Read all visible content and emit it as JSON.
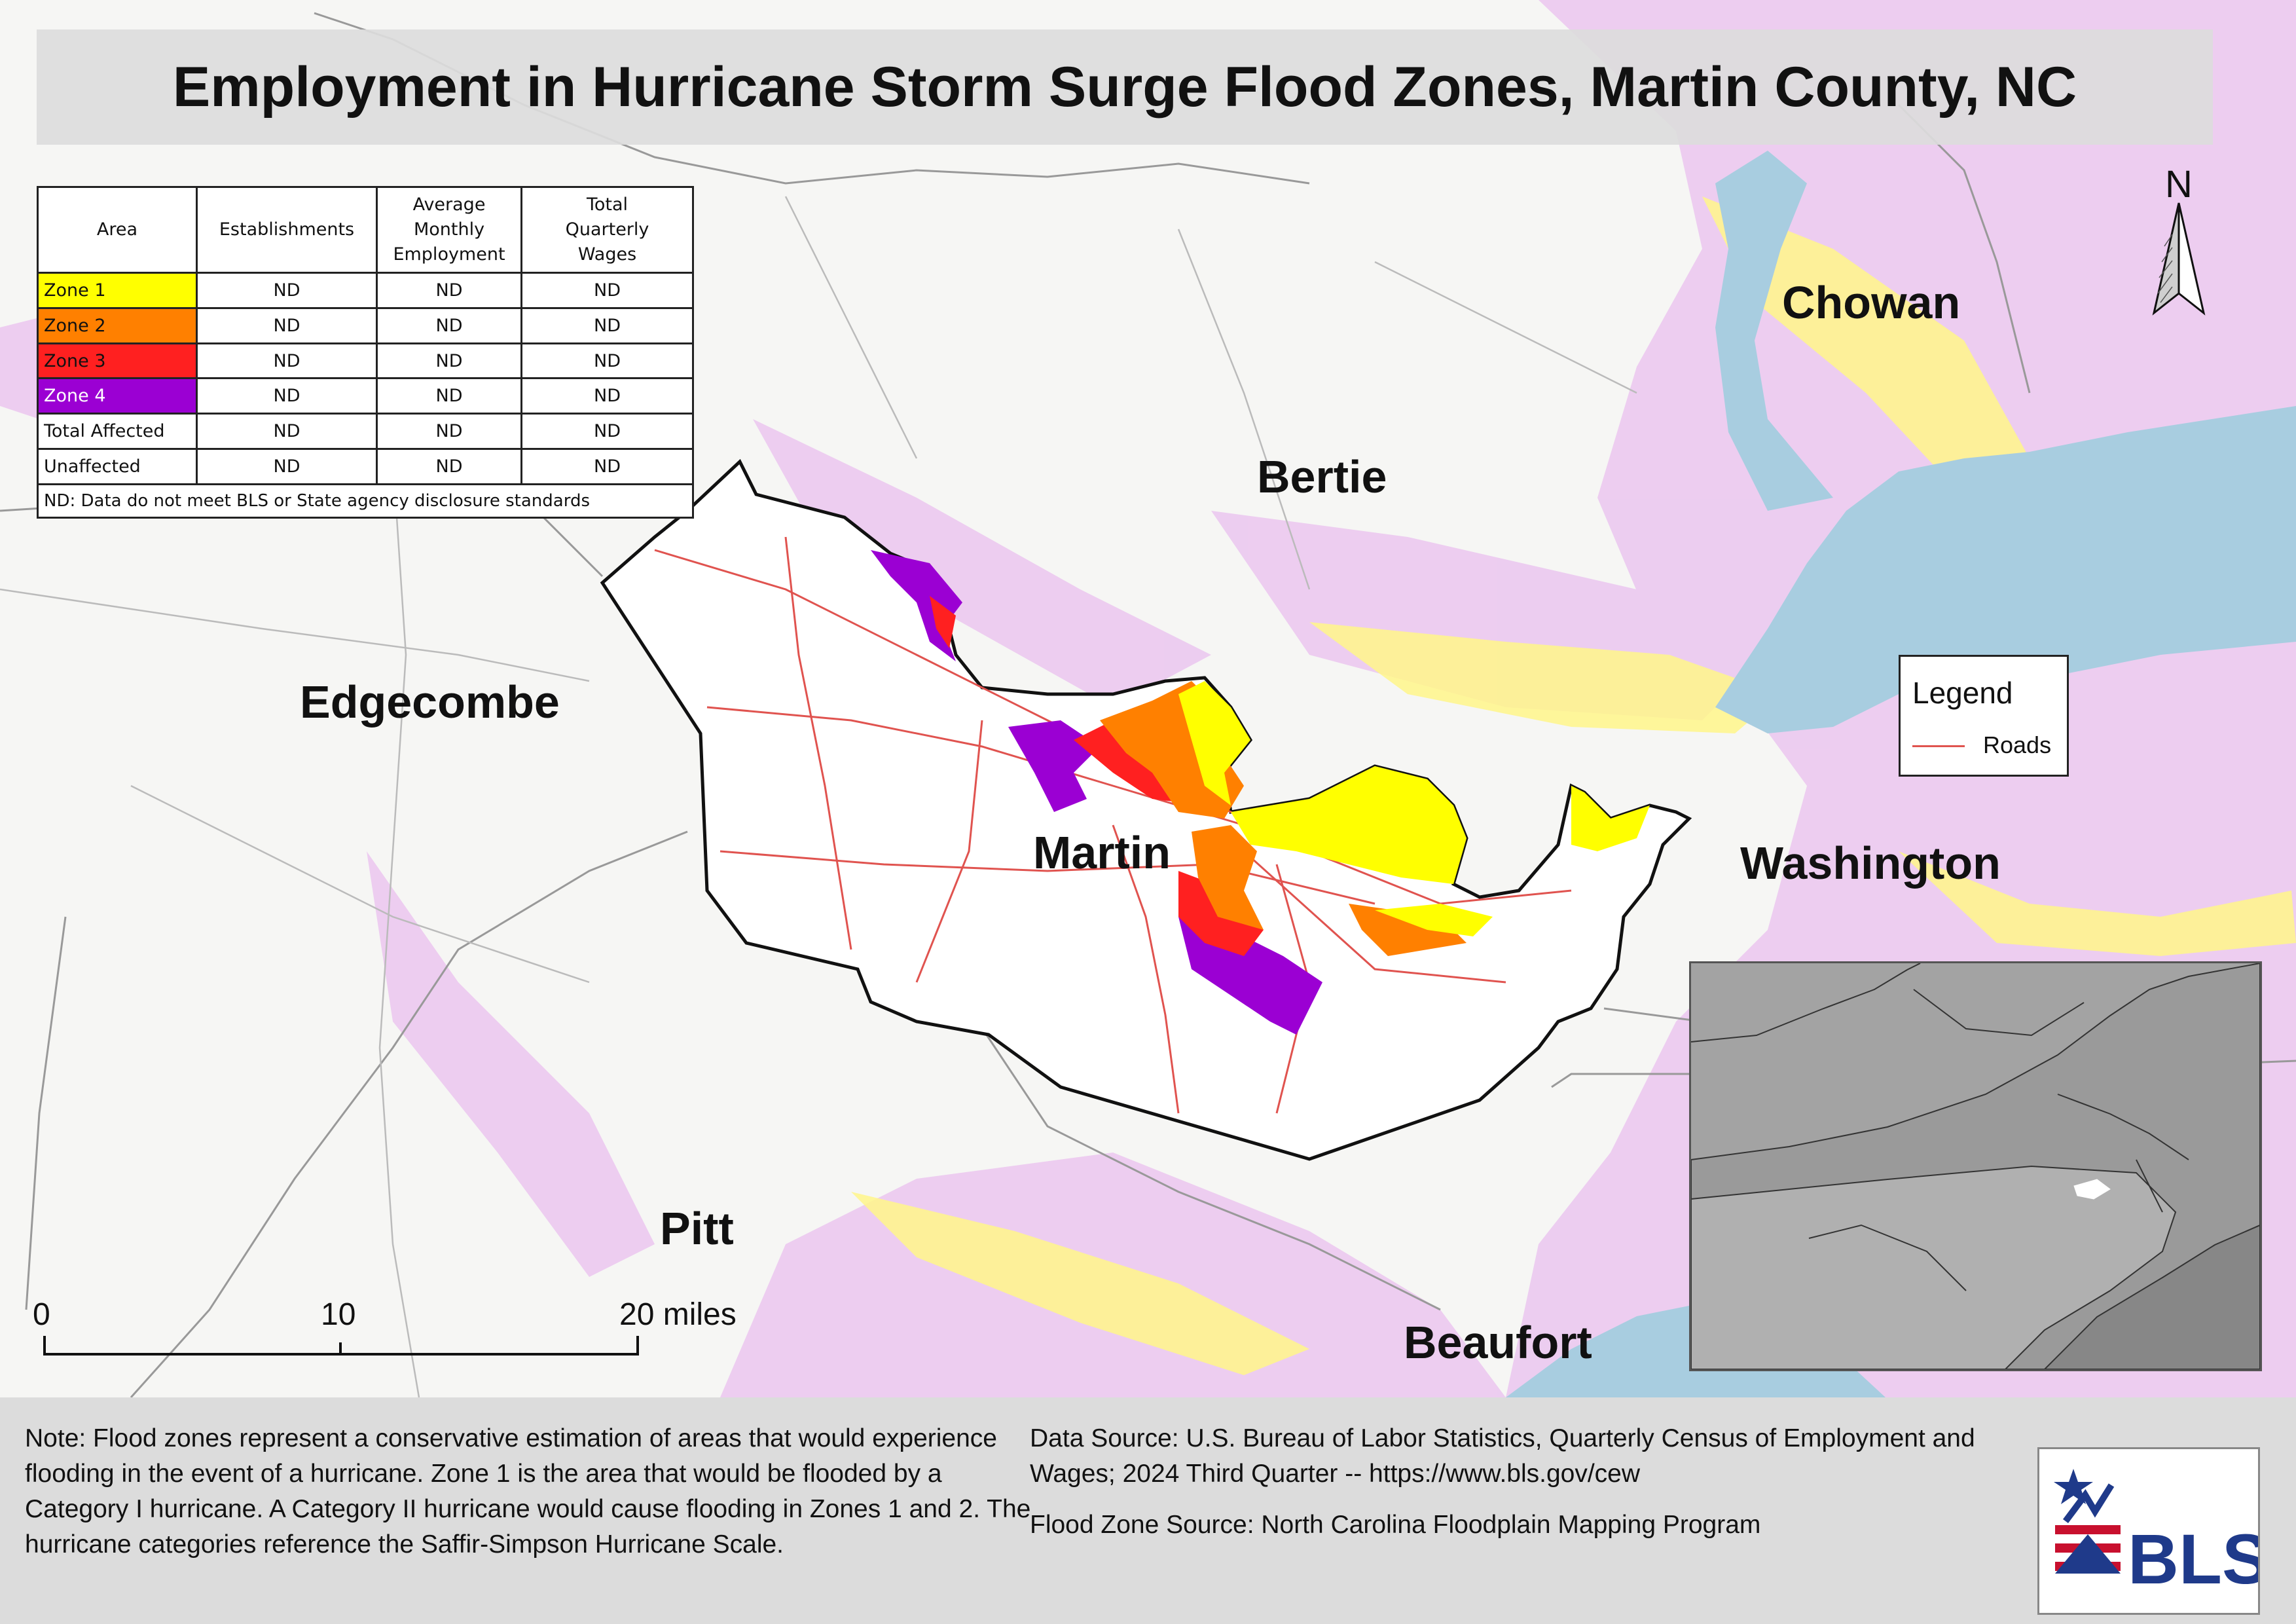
{
  "title": "Employment in Hurricane Storm Surge Flood Zones, Martin County, NC",
  "table": {
    "headers": [
      "Area",
      "Establishments",
      "Average Monthly Employment",
      "Total Quarterly Wages"
    ],
    "header_lines": {
      "avg": [
        "Average",
        "Monthly",
        "Employment"
      ],
      "wages": [
        "Total",
        "Quarterly",
        "Wages"
      ]
    },
    "rows": [
      {
        "area": "Zone 1",
        "establishments": "ND",
        "employment": "ND",
        "wages": "ND",
        "color": "#ffff00",
        "text_color": "#111111"
      },
      {
        "area": "Zone 2",
        "establishments": "ND",
        "employment": "ND",
        "wages": "ND",
        "color": "#ff8000",
        "text_color": "#111111"
      },
      {
        "area": "Zone 3",
        "establishments": "ND",
        "employment": "ND",
        "wages": "ND",
        "color": "#ff2020",
        "text_color": "#111111"
      },
      {
        "area": "Zone 4",
        "establishments": "ND",
        "employment": "ND",
        "wages": "ND",
        "color": "#9b00d3",
        "text_color": "#ffffff"
      },
      {
        "area": "Total Affected",
        "establishments": "ND",
        "employment": "ND",
        "wages": "ND",
        "color": "#ffffff",
        "text_color": "#111111"
      },
      {
        "area": "Unaffected",
        "establishments": "ND",
        "employment": "ND",
        "wages": "ND",
        "color": "#ffffff",
        "text_color": "#111111"
      }
    ],
    "footnote": "ND: Data do not meet BLS or State agency disclosure standards"
  },
  "counties": {
    "chowan": "Chowan",
    "bertie": "Bertie",
    "edgecombe": "Edgecombe",
    "martin": "Martin",
    "washington": "Washington",
    "pitt": "Pitt",
    "beaufort": "Beaufort"
  },
  "north_arrow": "N",
  "legend": {
    "title": "Legend",
    "roads": "Roads",
    "road_color": "#e0534f"
  },
  "scale": {
    "s0": "0",
    "s10": "10",
    "s20": "20 miles"
  },
  "note": "Note: Flood zones represent a conservative estimation of areas that would experience flooding in the event of a hurricane. Zone 1 is the area that would be flooded by a Category I hurricane. A Category II hurricane would cause flooding in Zones 1 and 2. The hurricane categories reference the Saffir-Simpson Hurricane Scale.",
  "data_source": "Data Source: U.S. Bureau of Labor Statistics, Quarterly Census of Employment and Wages; 2024 Third Quarter -- https://www.bls.gov/cew",
  "flood_source": "Flood Zone Source: North Carolina Floodplain Mapping Program",
  "logo_text": "BLS",
  "colors": {
    "zone1": "#ffff00",
    "zone2": "#ff8000",
    "zone3": "#ff2020",
    "zone4": "#9b00d3",
    "water": "#a8cde0",
    "surrounding_flood": "#e8c8ee"
  }
}
